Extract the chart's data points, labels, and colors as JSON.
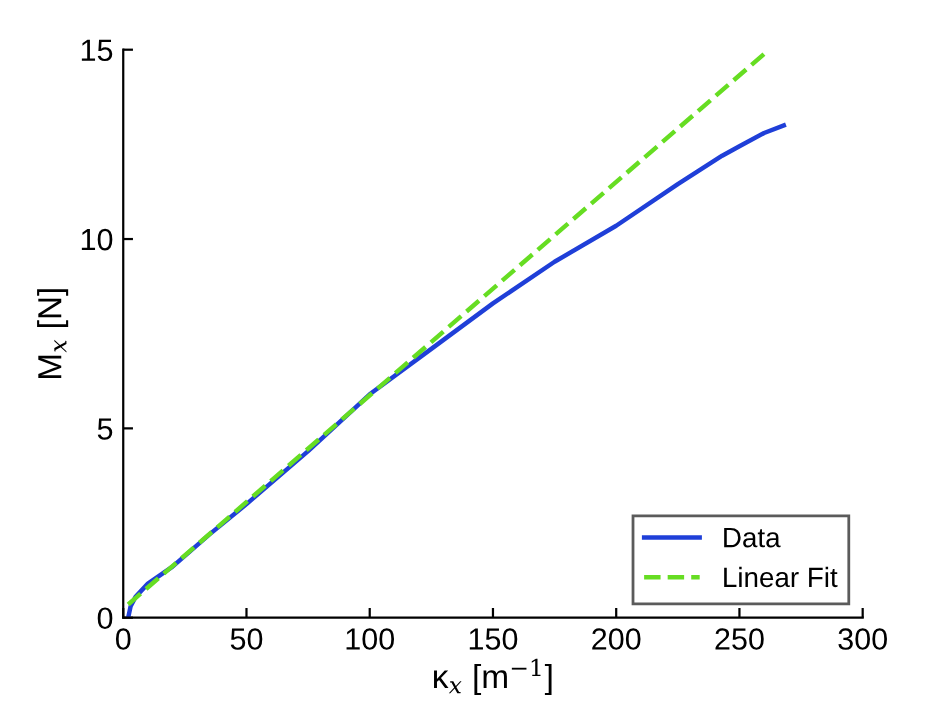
{
  "chart_data": {
    "type": "line",
    "xlabel": "κ$_{x}$ [m$^{−1}$]",
    "ylabel": "M$_{x}$ [N]",
    "xlim": [
      0,
      300
    ],
    "ylim": [
      0,
      15
    ],
    "xticks": [
      0,
      50,
      100,
      150,
      200,
      250,
      300
    ],
    "yticks": [
      0,
      5,
      10,
      15
    ],
    "grid": false,
    "legend": "bottom right",
    "series": [
      {
        "name": "Data",
        "color": "#1f3fd8",
        "line_style": "solid",
        "x": [
          2,
          3,
          5,
          10,
          20,
          35,
          50,
          75,
          100,
          125,
          150,
          175,
          200,
          225,
          243,
          250,
          260,
          268
        ],
        "values": [
          0,
          0.3,
          0.55,
          0.9,
          1.35,
          2.2,
          3.0,
          4.4,
          5.9,
          7.1,
          8.3,
          9.4,
          10.35,
          11.45,
          12.2,
          12.45,
          12.8,
          13.0
        ]
      },
      {
        "name": "Linear Fit",
        "color": "#66dd22",
        "line_style": "dashed",
        "x": [
          2,
          262
        ],
        "values": [
          0.35,
          15
        ]
      }
    ]
  }
}
